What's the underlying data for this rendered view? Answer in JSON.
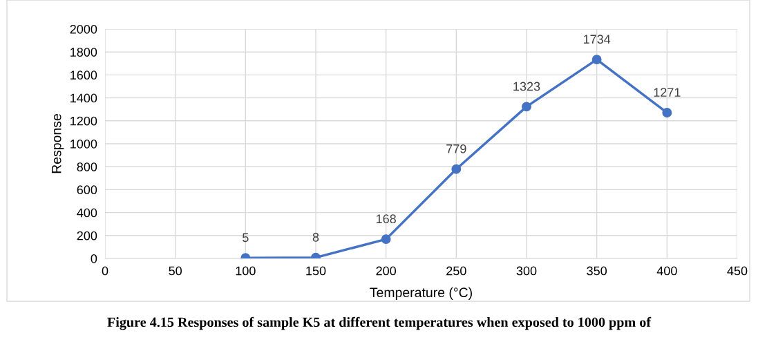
{
  "chart_data": {
    "type": "line",
    "xlabel": "Temperature (°C)",
    "ylabel": "Response",
    "x": [
      100,
      150,
      200,
      250,
      300,
      350,
      400
    ],
    "series": [
      {
        "color": "#4472c4",
        "values": [
          5,
          8,
          168,
          779,
          1323,
          1734,
          1271
        ]
      }
    ],
    "xlim": [
      0,
      450
    ],
    "xticks": [
      0,
      50,
      100,
      150,
      200,
      250,
      300,
      350,
      400,
      450
    ],
    "ylim": [
      0,
      2000
    ],
    "yticks": [
      0,
      200,
      400,
      600,
      800,
      1000,
      1200,
      1400,
      1600,
      1800,
      2000
    ],
    "grid": true,
    "marker": "circle",
    "line_style": "solid",
    "data_labels": true,
    "legend": false,
    "annotations": [
      "Figure 4.15 Responses of sample K5 at different temperatures when exposed to 1000 ppm of"
    ]
  }
}
